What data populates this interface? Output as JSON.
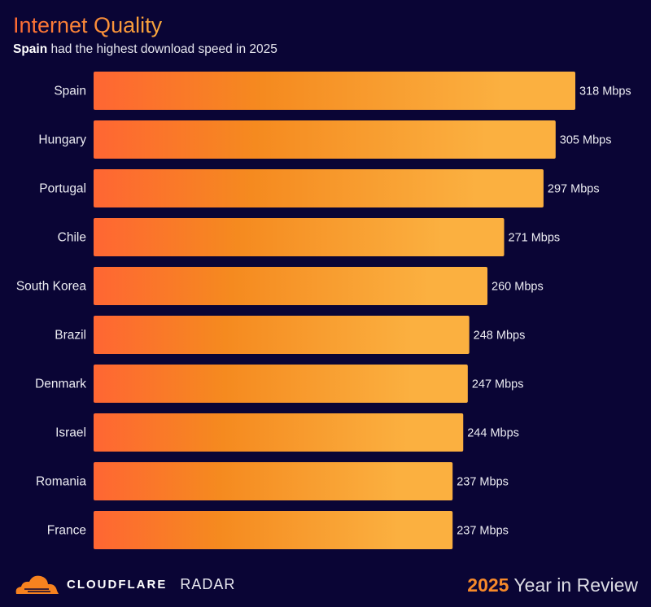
{
  "header": {
    "title": "Internet Quality",
    "subtitle_bold": "Spain",
    "subtitle_rest": " had the highest download speed in 2025"
  },
  "chart_data": {
    "type": "bar",
    "orientation": "horizontal",
    "categories": [
      "Spain",
      "Hungary",
      "Portugal",
      "Chile",
      "South Korea",
      "Brazil",
      "Denmark",
      "Israel",
      "Romania",
      "France"
    ],
    "values": [
      318,
      305,
      297,
      271,
      260,
      248,
      247,
      244,
      237,
      237
    ],
    "value_labels": [
      "318 Mbps",
      "305 Mbps",
      "297 Mbps",
      "271 Mbps",
      "260 Mbps",
      "248 Mbps",
      "247 Mbps",
      "244 Mbps",
      "237 Mbps",
      "237 Mbps"
    ],
    "unit": "Mbps",
    "xlim": [
      0,
      318
    ],
    "grid": false,
    "colors": {
      "bar_start": "#ff6633",
      "bar_mid": "#f58a1f",
      "bar_end": "#fbb040",
      "background": "#0a0535"
    }
  },
  "footer": {
    "brand": "CLOUDFLARE",
    "product": "RADAR",
    "year": "2025",
    "tagline": " Year in Review"
  }
}
